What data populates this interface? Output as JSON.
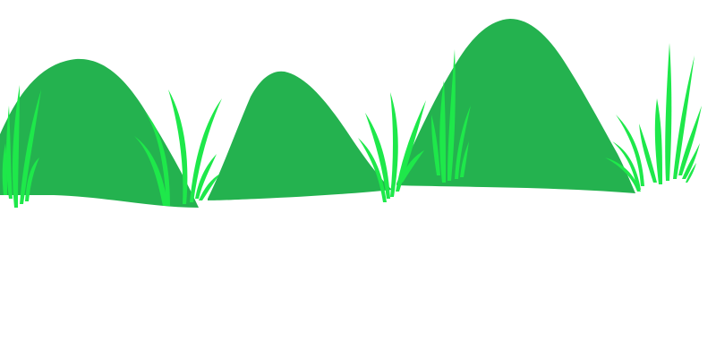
{
  "scene": {
    "background_color": "#ffffff",
    "hill_color": "#24b24f",
    "grass_color": "#1ee84a",
    "hill_count": 3,
    "grass_tuft_count": 6
  }
}
